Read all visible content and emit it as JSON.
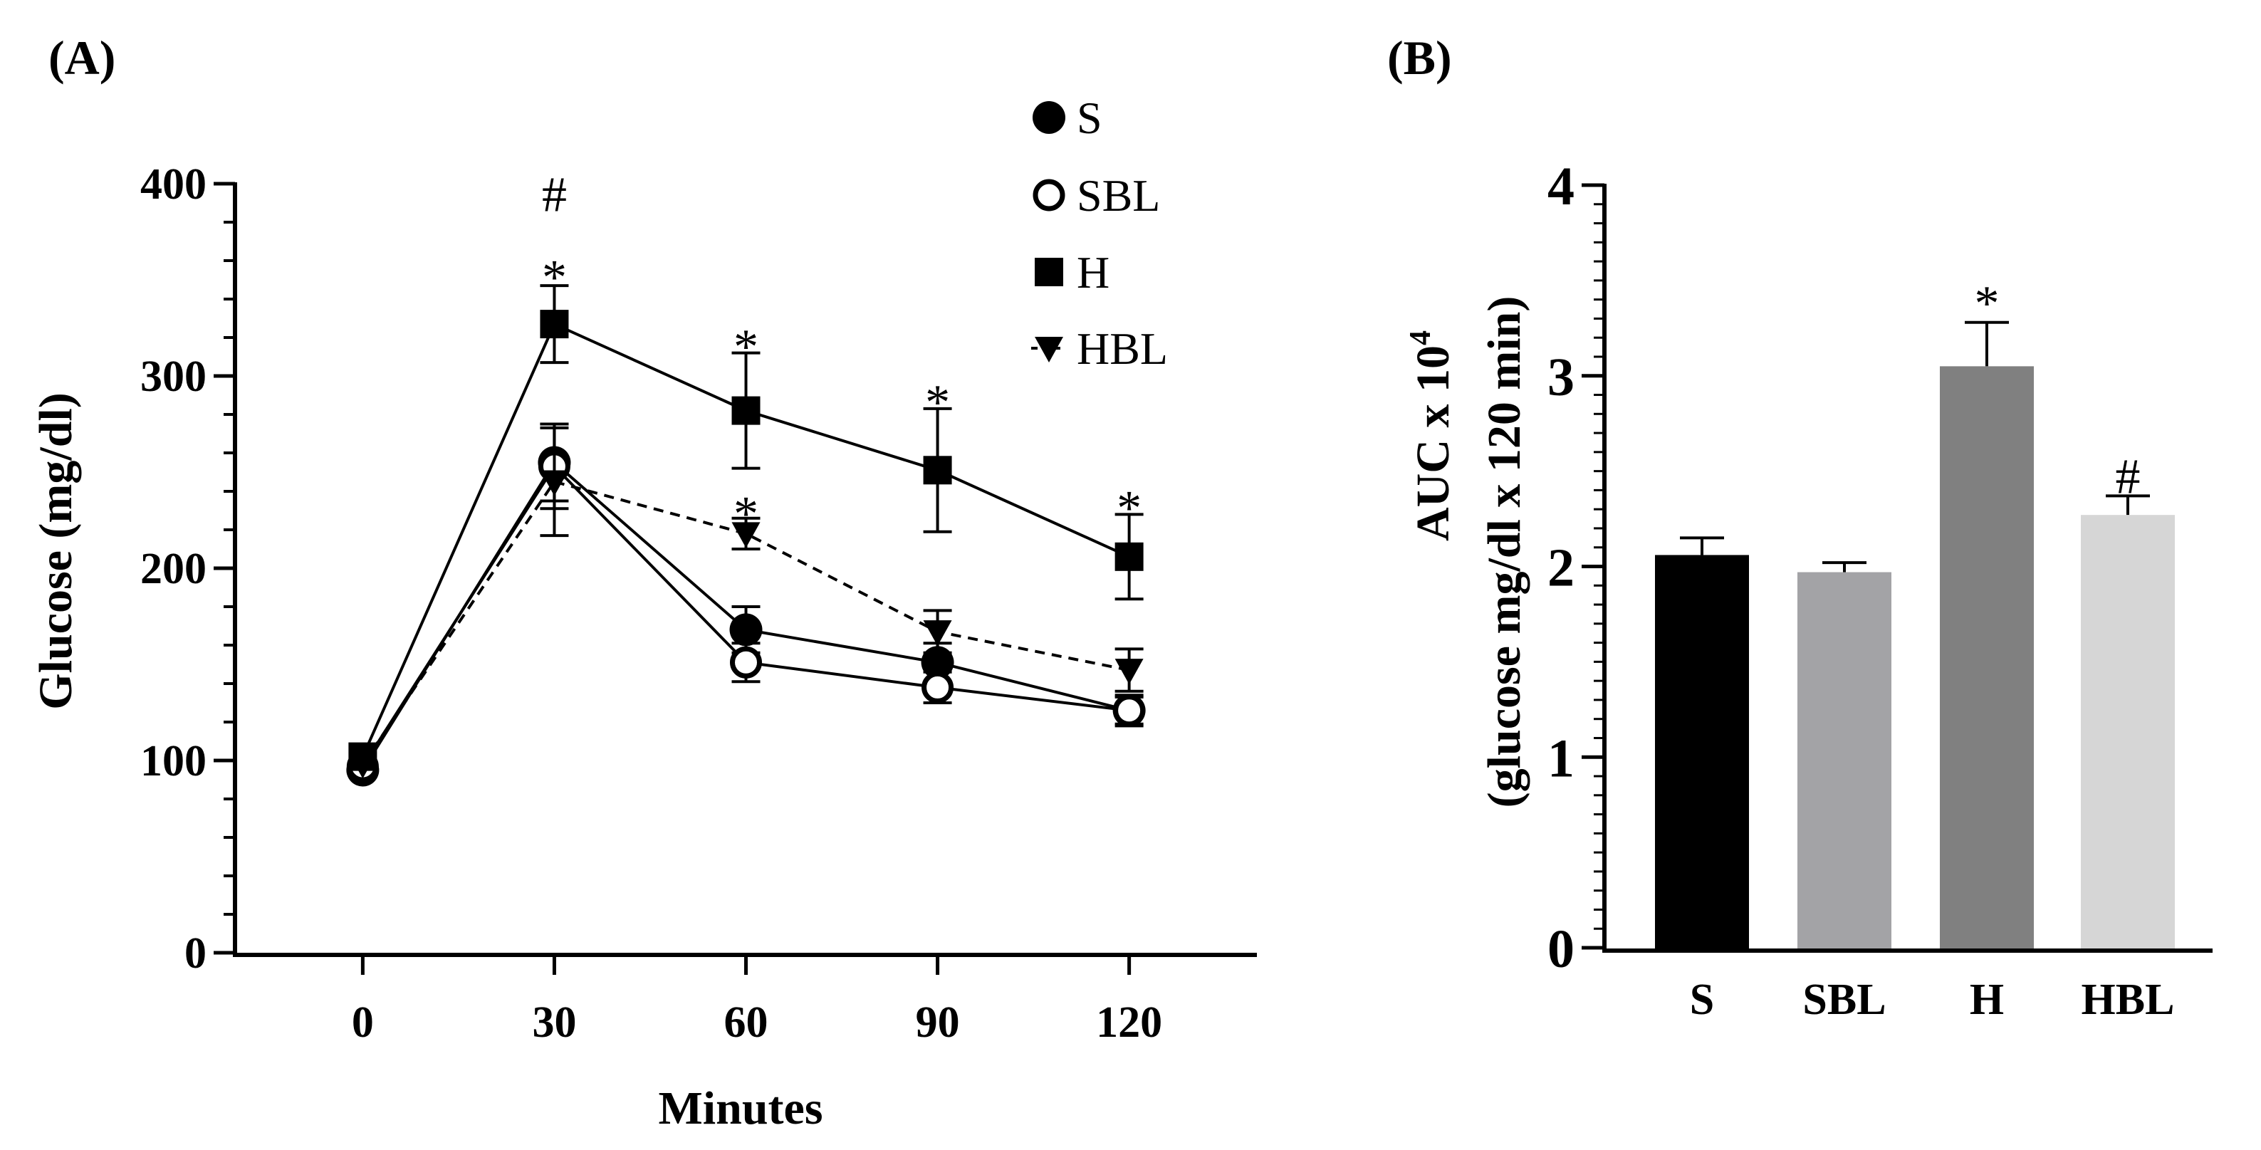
{
  "panels": {
    "A": {
      "label": "(A)"
    },
    "B": {
      "label": "(B)"
    }
  },
  "chart_data": [
    {
      "type": "line",
      "panel": "A",
      "title": "",
      "xlabel": "Minutes",
      "ylabel": "Glucose (mg/dl)",
      "x": [
        0,
        30,
        60,
        90,
        120
      ],
      "x_tick_labels": [
        "0",
        "30",
        "60",
        "90",
        "120"
      ],
      "xlim": [
        -20,
        140
      ],
      "ylim": [
        0,
        400
      ],
      "y_ticks": [
        0,
        100,
        200,
        300,
        400
      ],
      "y_tick_labels": [
        "0",
        "100",
        "200",
        "300",
        "400"
      ],
      "legend_position": "top-right",
      "series": [
        {
          "name": "S",
          "marker": "filled-circle",
          "line": "solid",
          "values": [
            95,
            255,
            168,
            151,
            126
          ],
          "errors": [
            0,
            20,
            12,
            10,
            8
          ]
        },
        {
          "name": "SBL",
          "marker": "open-circle",
          "line": "solid",
          "values": [
            97,
            253,
            151,
            138,
            126
          ],
          "errors": [
            0,
            22,
            10,
            8,
            7
          ]
        },
        {
          "name": "H",
          "marker": "filled-square",
          "line": "solid",
          "values": [
            102,
            327,
            282,
            251,
            206
          ],
          "errors": [
            0,
            20,
            30,
            32,
            22
          ]
        },
        {
          "name": "HBL",
          "marker": "filled-triangle-down",
          "line": "dashed",
          "values": [
            98,
            245,
            218,
            167,
            147
          ],
          "errors": [
            0,
            28,
            8,
            11,
            11
          ]
        }
      ],
      "annotations": [
        {
          "text": "#",
          "x": 30,
          "y": 395
        },
        {
          "text": "*",
          "x": 30,
          "y": 352
        },
        {
          "text": "*",
          "x": 60,
          "y": 316
        },
        {
          "text": "*",
          "x": 60,
          "y": 229
        },
        {
          "text": "*",
          "x": 90,
          "y": 287
        },
        {
          "text": "*",
          "x": 120,
          "y": 232
        }
      ]
    },
    {
      "type": "bar",
      "panel": "B",
      "title": "",
      "xlabel": "",
      "ylabel_line1": "AUC x 10",
      "ylabel_exponent": "4",
      "ylabel_line2": "(glucose mg/dl x 120 min)",
      "categories": [
        "S",
        "SBL",
        "H",
        "HBL"
      ],
      "values": [
        2.06,
        1.97,
        3.05,
        2.27
      ],
      "errors": [
        0.09,
        0.05,
        0.23,
        0.1
      ],
      "colors": [
        "#000000",
        "#a3a3a6",
        "#808080",
        "#d6d6d6"
      ],
      "ylim": [
        0,
        4
      ],
      "y_ticks": [
        0,
        1,
        2,
        3,
        4
      ],
      "y_tick_labels": [
        "0",
        "1",
        "2",
        "3",
        "4"
      ],
      "annotations": [
        {
          "text": "*",
          "category": "H"
        },
        {
          "text": "#",
          "category": "HBL"
        }
      ]
    }
  ]
}
